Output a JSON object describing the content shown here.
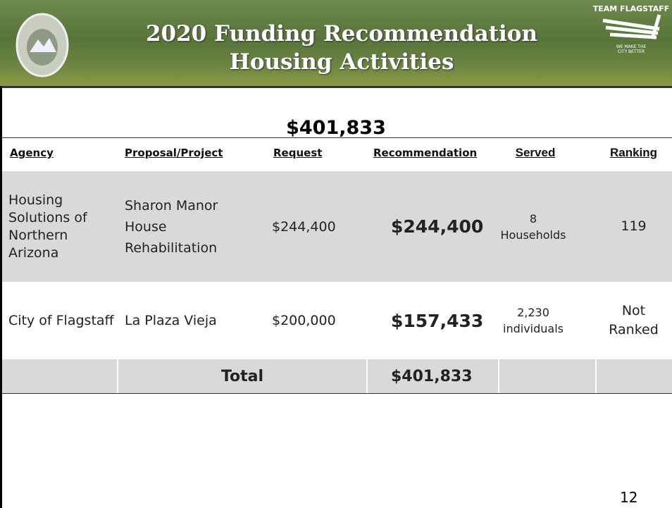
{
  "header": {
    "title_lines": [
      "2020 Funding Recommendation",
      "Housing Activities"
    ],
    "logo": {
      "name": "TEAM FLAGSTAFF",
      "tagline": [
        "WE MAKE THE",
        "CITY BETTER"
      ]
    }
  },
  "total_amount": "$401,833",
  "table": {
    "columns": [
      "Agency",
      "Proposal/Project",
      "Request",
      "Recommendation",
      "Served",
      "Ranking"
    ],
    "rows": [
      {
        "agency": "Housing Solutions of Northern Arizona",
        "project": "Sharon Manor House Rehabilitation",
        "request": "$244,400",
        "recommendation": "$244,400",
        "served": [
          "8",
          "Households"
        ],
        "ranking": [
          "119"
        ]
      },
      {
        "agency": "City of Flagstaff",
        "project": "La Plaza Vieja",
        "request": "$200,000",
        "recommendation": "$157,433",
        "served": [
          "2,230",
          "individuals"
        ],
        "ranking": [
          "Not",
          "Ranked"
        ]
      }
    ],
    "total": {
      "label": "Total",
      "amount": "$401,833"
    }
  },
  "page_number": "12"
}
